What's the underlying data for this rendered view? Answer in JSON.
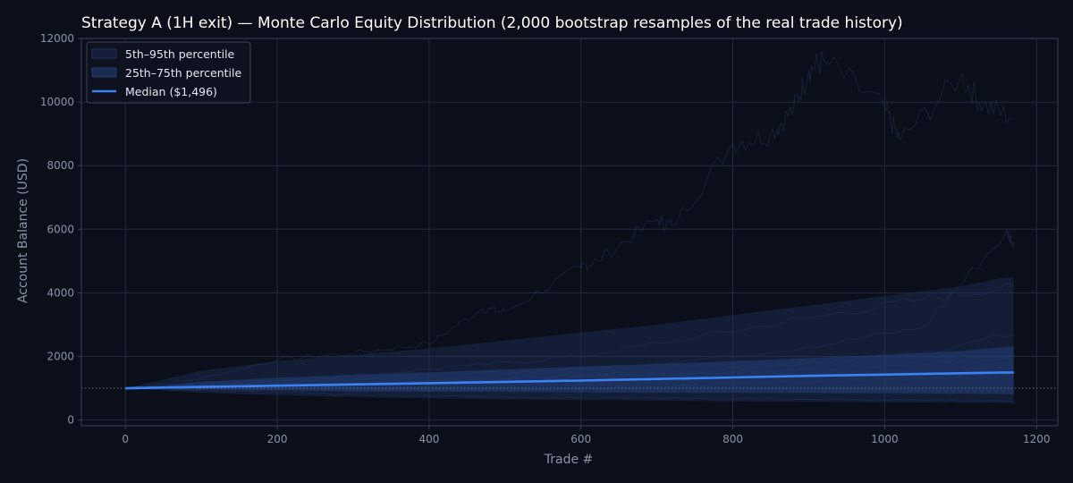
{
  "chart_data": {
    "type": "area",
    "title": "Strategy A (1H exit) — Monte Carlo Equity Distribution (2,000 bootstrap resamples of the real trade history)",
    "xlabel": "Trade #",
    "ylabel": "Account Balance (USD)",
    "xlim": [
      -58,
      1228
    ],
    "ylim": [
      -180,
      12000
    ],
    "x_ticks": [
      0,
      200,
      400,
      600,
      800,
      1000,
      1200
    ],
    "x_tick_labels": [
      "0",
      "200",
      "400",
      "600",
      "800",
      "1000",
      "1200"
    ],
    "y_ticks": [
      0,
      2000,
      4000,
      6000,
      8000,
      10000,
      12000
    ],
    "y_tick_labels": [
      "0",
      "2000",
      "4000",
      "6000",
      "8000",
      "10000",
      "12000"
    ],
    "grid": true,
    "legend_position": "top-left",
    "starting_balance_reference": 1000,
    "bands": [
      {
        "name": "5th–95th percentile",
        "x": [
          0,
          100,
          200,
          300,
          400,
          500,
          600,
          700,
          800,
          900,
          1000,
          1100,
          1150,
          1170
        ],
        "lower": [
          1000,
          860,
          780,
          720,
          680,
          650,
          630,
          610,
          590,
          570,
          560,
          550,
          540,
          530
        ],
        "upper": [
          1000,
          1550,
          1850,
          2050,
          2250,
          2500,
          2750,
          3000,
          3300,
          3600,
          3900,
          4200,
          4450,
          4500
        ]
      },
      {
        "name": "25th–75th percentile",
        "x": [
          0,
          100,
          200,
          300,
          400,
          500,
          600,
          700,
          800,
          900,
          1000,
          1100,
          1150,
          1170
        ],
        "lower": [
          1000,
          960,
          930,
          910,
          890,
          880,
          870,
          865,
          860,
          850,
          840,
          830,
          820,
          810
        ],
        "upper": [
          1000,
          1200,
          1330,
          1420,
          1500,
          1590,
          1680,
          1760,
          1850,
          1950,
          2050,
          2170,
          2280,
          2320
        ]
      }
    ],
    "series": [
      {
        "name": "Median ($1,496)",
        "x": [
          0,
          100,
          200,
          300,
          400,
          500,
          600,
          700,
          800,
          900,
          1000,
          1100,
          1150,
          1170
        ],
        "values": [
          1000,
          1040,
          1080,
          1120,
          1160,
          1200,
          1240,
          1290,
          1340,
          1390,
          1430,
          1470,
          1490,
          1496
        ]
      }
    ],
    "sample_paths": [
      {
        "x": [
          0,
          100,
          200,
          300,
          400,
          470,
          500,
          600,
          620,
          700,
          720,
          800,
          850,
          880,
          900,
          920,
          1000,
          1020,
          1100,
          1130,
          1170
        ],
        "values": [
          1000,
          1300,
          1900,
          2100,
          2400,
          3500,
          3400,
          4800,
          5000,
          6300,
          6100,
          8700,
          9000,
          9800,
          11000,
          11300,
          9800,
          8800,
          10800,
          9900,
          9500
        ]
      },
      {
        "x": [
          0,
          150,
          300,
          450,
          600,
          750,
          900,
          1050,
          1170
        ],
        "values": [
          1000,
          1200,
          1400,
          1700,
          2000,
          2600,
          3200,
          3800,
          4200
        ]
      },
      {
        "x": [
          0,
          150,
          300,
          450,
          600,
          750,
          900,
          1050,
          1160,
          1170
        ],
        "values": [
          1000,
          1150,
          1300,
          1450,
          1600,
          1900,
          2300,
          2900,
          5900,
          5600
        ]
      },
      {
        "x": [
          0,
          150,
          300,
          450,
          600,
          750,
          900,
          1050,
          1170
        ],
        "values": [
          1000,
          1100,
          1150,
          1250,
          1400,
          1550,
          1800,
          2100,
          2700
        ]
      },
      {
        "x": [
          0,
          150,
          300,
          450,
          600,
          750,
          900,
          1050,
          1170
        ],
        "values": [
          1000,
          950,
          900,
          950,
          1000,
          1100,
          1200,
          1300,
          1500
        ]
      },
      {
        "x": [
          0,
          150,
          300,
          450,
          600,
          750,
          900,
          1050,
          1170
        ],
        "values": [
          1000,
          900,
          800,
          750,
          700,
          680,
          650,
          620,
          600
        ]
      },
      {
        "x": [
          0,
          150,
          300,
          450,
          600,
          750,
          900,
          1050,
          1170
        ],
        "values": [
          1000,
          1050,
          1100,
          1200,
          1350,
          1450,
          1600,
          1750,
          1900
        ]
      }
    ],
    "legend": [
      {
        "label": "5th–95th percentile",
        "kind": "band-outer"
      },
      {
        "label": "25th–75th percentile",
        "kind": "band-inner"
      },
      {
        "label": "Median ($1,496)",
        "kind": "line"
      }
    ],
    "colors": {
      "background": "#0b0f19",
      "grid": "#232a3a",
      "axis": "#3a4255",
      "text": "#8b93a7",
      "title": "#ffffff",
      "band_outer": "#1c2f5a",
      "band_inner": "#24407a",
      "median": "#3b82f6",
      "paths": "#4a6aa8",
      "reference": "#6b7384"
    }
  }
}
